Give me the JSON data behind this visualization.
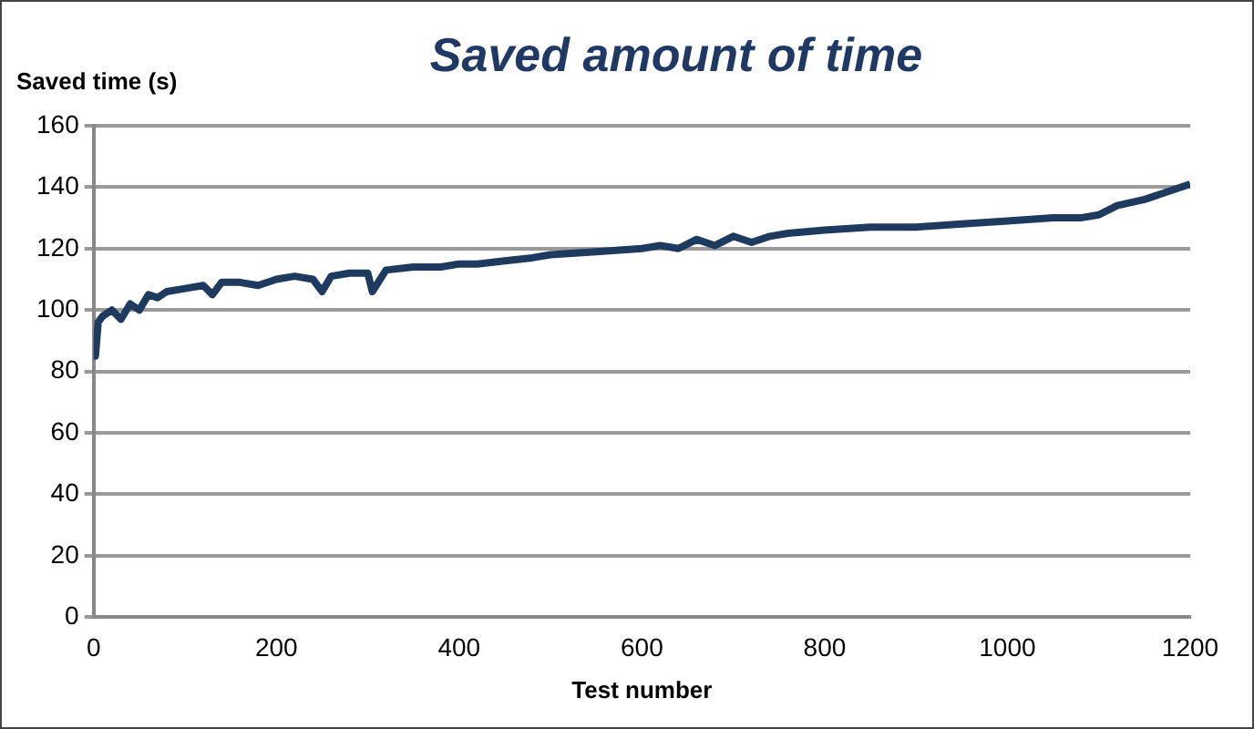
{
  "chart_data": {
    "type": "line",
    "title": "Saved amount of time",
    "xlabel": "Test number",
    "ylabel": "Saved time (s)",
    "x": [
      0,
      2,
      5,
      10,
      20,
      30,
      40,
      50,
      60,
      70,
      80,
      100,
      120,
      130,
      140,
      160,
      180,
      200,
      220,
      240,
      250,
      260,
      280,
      300,
      305,
      320,
      350,
      380,
      400,
      420,
      450,
      480,
      500,
      550,
      600,
      620,
      640,
      660,
      680,
      700,
      720,
      740,
      760,
      800,
      850,
      900,
      950,
      1000,
      1050,
      1080,
      1100,
      1120,
      1150,
      1180,
      1200
    ],
    "series": [
      {
        "color": "#1f3a5f",
        "values": [
          88,
          85,
          96,
          98,
          100,
          97,
          102,
          100,
          105,
          104,
          106,
          107,
          108,
          105,
          109,
          109,
          108,
          110,
          111,
          110,
          106,
          111,
          112,
          112,
          106,
          113,
          114,
          114,
          115,
          115,
          116,
          117,
          118,
          119,
          120,
          121,
          120,
          123,
          121,
          124,
          122,
          124,
          125,
          126,
          127,
          127,
          128,
          129,
          130,
          130,
          131,
          134,
          136,
          139,
          141
        ]
      }
    ],
    "xlim": [
      0,
      1200
    ],
    "xticks": [
      0,
      200,
      400,
      600,
      800,
      1000,
      1200
    ],
    "ylim": [
      0,
      160
    ],
    "yticks": [
      0,
      20,
      40,
      60,
      80,
      100,
      120,
      140,
      160
    ],
    "grid": "y",
    "marker": "none",
    "line_style": "solid"
  }
}
